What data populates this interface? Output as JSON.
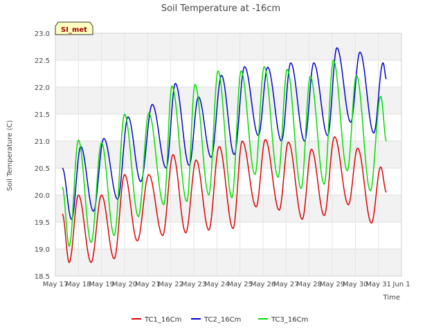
{
  "chart_data": {
    "type": "line",
    "title": "Soil Temperature at -16cm",
    "xlabel": "Time",
    "ylabel": "Soil Temperature (C)",
    "badge": "SI_met",
    "ylim": [
      18.5,
      23.0
    ],
    "yticks": [
      18.5,
      19.0,
      19.5,
      20.0,
      20.5,
      21.0,
      21.5,
      22.0,
      22.5,
      23.0
    ],
    "xlim": [
      17,
      32
    ],
    "xticks": [
      17,
      18,
      19,
      20,
      21,
      22,
      23,
      24,
      25,
      26,
      27,
      28,
      29,
      30,
      31,
      32
    ],
    "xtick_labels": [
      "May 17",
      "May 18",
      "May 19",
      "May 20",
      "May 21",
      "May 22",
      "May 23",
      "May 24",
      "May 25",
      "May 26",
      "May 27",
      "May 28",
      "May 29",
      "May 30",
      "May 31",
      "Jun 1"
    ],
    "grid": true,
    "legend_position": "bottom-center",
    "series": [
      {
        "name": "TC1_16Cm",
        "color": "#dd0000",
        "points": [
          [
            17.3,
            19.65
          ],
          [
            17.6,
            18.75
          ],
          [
            18.0,
            20.0
          ],
          [
            18.55,
            18.75
          ],
          [
            19.0,
            20.0
          ],
          [
            19.55,
            18.82
          ],
          [
            20.0,
            20.38
          ],
          [
            20.55,
            19.15
          ],
          [
            21.05,
            20.38
          ],
          [
            21.65,
            19.25
          ],
          [
            22.1,
            20.75
          ],
          [
            22.65,
            19.3
          ],
          [
            23.1,
            20.65
          ],
          [
            23.65,
            19.35
          ],
          [
            24.1,
            20.9
          ],
          [
            24.7,
            19.38
          ],
          [
            25.1,
            21.0
          ],
          [
            25.7,
            19.78
          ],
          [
            26.1,
            21.03
          ],
          [
            26.7,
            19.72
          ],
          [
            27.1,
            20.98
          ],
          [
            27.7,
            19.55
          ],
          [
            28.1,
            20.85
          ],
          [
            28.65,
            19.62
          ],
          [
            29.1,
            21.08
          ],
          [
            29.7,
            19.82
          ],
          [
            30.1,
            20.87
          ],
          [
            30.7,
            19.48
          ],
          [
            31.1,
            20.52
          ],
          [
            31.35,
            20.05
          ]
        ]
      },
      {
        "name": "TC2_16Cm",
        "color": "#0000cc",
        "points": [
          [
            17.3,
            20.5
          ],
          [
            17.7,
            19.55
          ],
          [
            18.1,
            20.9
          ],
          [
            18.65,
            19.7
          ],
          [
            19.1,
            21.05
          ],
          [
            19.7,
            19.92
          ],
          [
            20.15,
            21.45
          ],
          [
            20.7,
            20.25
          ],
          [
            21.2,
            21.68
          ],
          [
            21.8,
            20.5
          ],
          [
            22.2,
            22.07
          ],
          [
            22.8,
            20.55
          ],
          [
            23.2,
            21.82
          ],
          [
            23.75,
            20.7
          ],
          [
            24.2,
            22.22
          ],
          [
            24.75,
            20.75
          ],
          [
            25.2,
            22.38
          ],
          [
            25.8,
            21.1
          ],
          [
            26.2,
            22.37
          ],
          [
            26.8,
            21.0
          ],
          [
            27.2,
            22.45
          ],
          [
            27.8,
            21.0
          ],
          [
            28.2,
            22.45
          ],
          [
            28.8,
            21.1
          ],
          [
            29.2,
            22.73
          ],
          [
            29.8,
            21.35
          ],
          [
            30.2,
            22.65
          ],
          [
            30.8,
            21.15
          ],
          [
            31.2,
            22.45
          ],
          [
            31.35,
            22.15
          ]
        ]
      },
      {
        "name": "TC3_16Cm",
        "color": "#00dd00",
        "points": [
          [
            17.3,
            20.15
          ],
          [
            17.6,
            19.05
          ],
          [
            18.0,
            21.02
          ],
          [
            18.55,
            19.12
          ],
          [
            19.0,
            20.97
          ],
          [
            19.55,
            19.25
          ],
          [
            20.0,
            21.5
          ],
          [
            20.6,
            19.6
          ],
          [
            21.05,
            21.52
          ],
          [
            21.7,
            19.82
          ],
          [
            22.05,
            22.02
          ],
          [
            22.7,
            19.88
          ],
          [
            23.05,
            22.05
          ],
          [
            23.65,
            20.0
          ],
          [
            24.05,
            22.3
          ],
          [
            24.65,
            19.95
          ],
          [
            25.05,
            22.3
          ],
          [
            25.65,
            20.38
          ],
          [
            26.05,
            22.38
          ],
          [
            26.65,
            20.33
          ],
          [
            27.05,
            22.33
          ],
          [
            27.65,
            20.12
          ],
          [
            28.05,
            22.2
          ],
          [
            28.65,
            20.2
          ],
          [
            29.05,
            22.5
          ],
          [
            29.65,
            20.45
          ],
          [
            30.05,
            22.22
          ],
          [
            30.65,
            20.08
          ],
          [
            31.1,
            21.83
          ],
          [
            31.35,
            21.0
          ]
        ]
      }
    ]
  }
}
